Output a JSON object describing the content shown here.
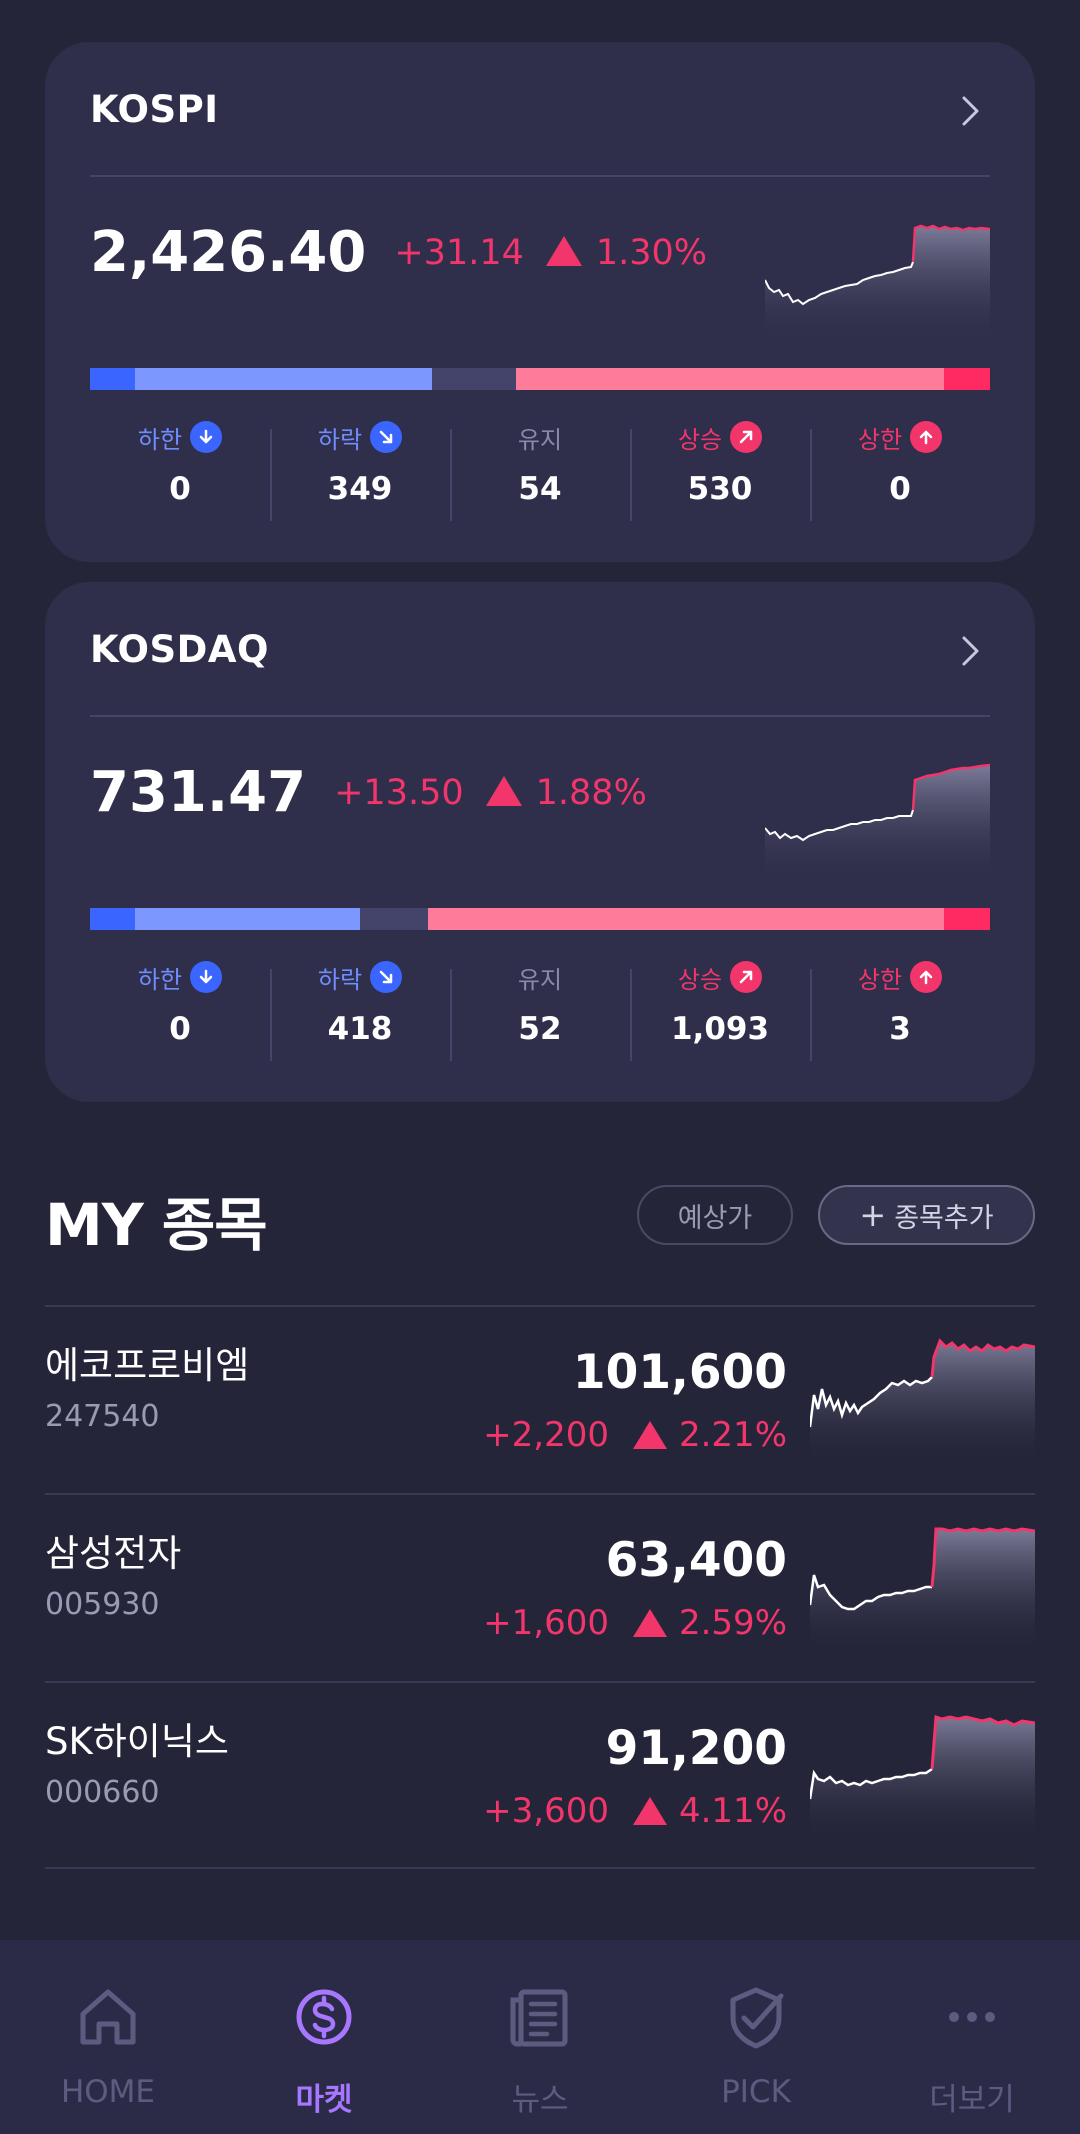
{
  "indices": [
    {
      "name": "KOSPI",
      "value": "2,426.40",
      "change": "+31.14",
      "pct": "1.30%",
      "breadth": [
        {
          "label": "하한",
          "value": "0",
          "kind": "limit-down"
        },
        {
          "label": "하락",
          "value": "349",
          "kind": "down"
        },
        {
          "label": "유지",
          "value": "54",
          "kind": "flat"
        },
        {
          "label": "상승",
          "value": "530",
          "kind": "up"
        },
        {
          "label": "상한",
          "value": "0",
          "kind": "limit-up"
        }
      ]
    },
    {
      "name": "KOSDAQ",
      "value": "731.47",
      "change": "+13.50",
      "pct": "1.88%",
      "breadth": [
        {
          "label": "하한",
          "value": "0",
          "kind": "limit-down"
        },
        {
          "label": "하락",
          "value": "418",
          "kind": "down"
        },
        {
          "label": "유지",
          "value": "52",
          "kind": "flat"
        },
        {
          "label": "상승",
          "value": "1,093",
          "kind": "up"
        },
        {
          "label": "상한",
          "value": "3",
          "kind": "limit-up"
        }
      ]
    }
  ],
  "my": {
    "title": "MY 종목",
    "forecast_label": "예상가",
    "add_label": "종목추가",
    "stocks": [
      {
        "name": "에코프로비엠",
        "code": "247540",
        "price": "101,600",
        "change": "+2,200",
        "pct": "2.21%"
      },
      {
        "name": "삼성전자",
        "code": "005930",
        "price": "63,400",
        "change": "+1,600",
        "pct": "2.59%"
      },
      {
        "name": "SK하이닉스",
        "code": "000660",
        "price": "91,200",
        "change": "+3,600",
        "pct": "4.11%"
      }
    ]
  },
  "nav": [
    {
      "label": "HOME",
      "icon": "home-icon"
    },
    {
      "label": "마켓",
      "icon": "dollar-coin-icon",
      "active": true
    },
    {
      "label": "뉴스",
      "icon": "newspaper-icon"
    },
    {
      "label": "PICK",
      "icon": "check-shield-icon"
    },
    {
      "label": "더보기",
      "icon": "more-dots-icon"
    }
  ],
  "colors": {
    "up": "#f2356a",
    "down": "#6f8dff",
    "background": "#25253a",
    "card": "#2f2f4b",
    "accent": "#a778ff"
  }
}
